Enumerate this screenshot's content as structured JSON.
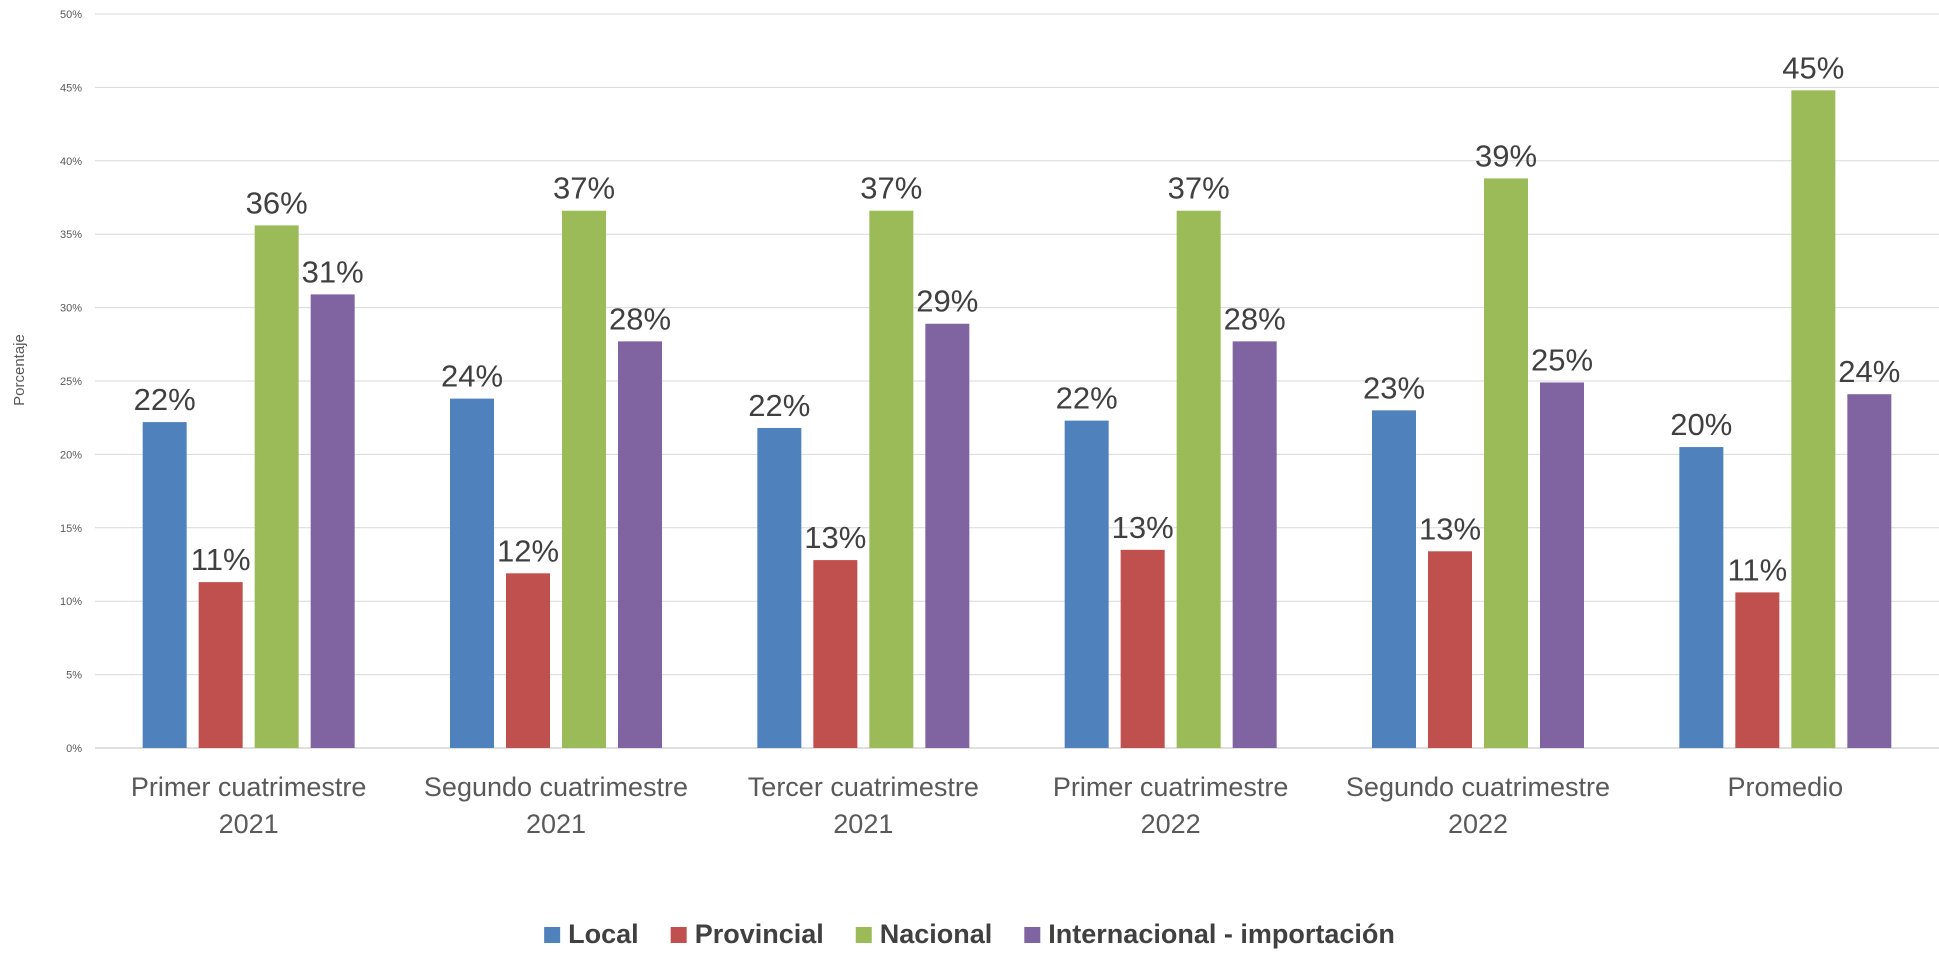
{
  "chart_data": {
    "type": "bar",
    "ylabel": "Porcentaje",
    "ylim": [
      0,
      50
    ],
    "ytick_step": 5,
    "ytick_suffix": "%",
    "grid": true,
    "legend_position": "bottom",
    "categories": [
      [
        "Primer cuatrimestre",
        "2021"
      ],
      [
        "Segundo cuatrimestre",
        "2021"
      ],
      [
        "Tercer cuatrimestre",
        "2021"
      ],
      [
        "Primer cuatrimestre",
        "2022"
      ],
      [
        "Segundo cuatrimestre",
        "2022"
      ],
      [
        "Promedio"
      ]
    ],
    "series": [
      {
        "name": "Local",
        "color": "#4f81bd",
        "values": [
          22.2,
          23.8,
          21.8,
          22.3,
          23.0,
          20.5
        ],
        "labels": [
          "22%",
          "24%",
          "22%",
          "22%",
          "23%",
          "20%"
        ]
      },
      {
        "name": "Provincial",
        "color": "#c0504d",
        "values": [
          11.3,
          11.9,
          12.8,
          13.5,
          13.4,
          10.6
        ],
        "labels": [
          "11%",
          "12%",
          "13%",
          "13%",
          "13%",
          "11%"
        ]
      },
      {
        "name": "Nacional",
        "color": "#9bbb59",
        "values": [
          35.6,
          36.6,
          36.6,
          36.6,
          38.8,
          44.8
        ],
        "labels": [
          "36%",
          "37%",
          "37%",
          "37%",
          "39%",
          "45%"
        ]
      },
      {
        "name": "Internacional - importación",
        "color": "#8064a2",
        "values": [
          30.9,
          27.7,
          28.9,
          27.7,
          24.9,
          24.1
        ],
        "labels": [
          "31%",
          "28%",
          "29%",
          "28%",
          "25%",
          "24%"
        ]
      }
    ]
  }
}
